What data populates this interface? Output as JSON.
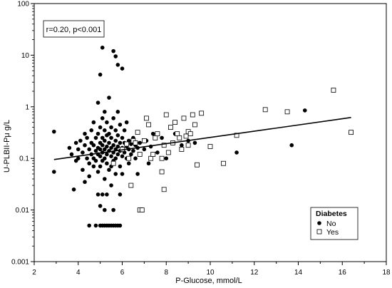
{
  "chart_data": {
    "type": "scatter",
    "title": "",
    "xlabel": "P-Glucose, mmol/L",
    "ylabel": "U-PLBII-Pμ g/L",
    "xlim": [
      2,
      18
    ],
    "ylim": [
      0.001,
      100
    ],
    "yscale": "log",
    "x_ticks": [
      2,
      4,
      6,
      8,
      10,
      12,
      14,
      16,
      18
    ],
    "y_ticks": [
      0.001,
      0.01,
      0.1,
      1,
      10,
      100
    ],
    "y_tick_labels": [
      "0.001",
      "0.01",
      "0.1",
      "1",
      "10",
      "100"
    ],
    "annotation": "r=0.20, p<0.001",
    "legend": {
      "title": "Diabetes",
      "position": "bottom-right",
      "entries": [
        {
          "label": "No",
          "marker": "filled-circle"
        },
        {
          "label": "Yes",
          "marker": "open-square"
        }
      ]
    },
    "regression_line": {
      "x": [
        2.9,
        16.4
      ],
      "y": [
        0.095,
        0.62
      ]
    },
    "series": [
      {
        "name": "No",
        "marker": "filled-circle",
        "points": [
          [
            2.9,
            0.33
          ],
          [
            2.9,
            0.055
          ],
          [
            3.6,
            0.16
          ],
          [
            3.7,
            0.12
          ],
          [
            3.8,
            0.025
          ],
          [
            3.9,
            0.2
          ],
          [
            3.9,
            0.09
          ],
          [
            4.0,
            0.1
          ],
          [
            4.0,
            0.15
          ],
          [
            4.1,
            0.22
          ],
          [
            4.2,
            0.13
          ],
          [
            4.2,
            0.06
          ],
          [
            4.3,
            0.3
          ],
          [
            4.3,
            0.18
          ],
          [
            4.3,
            0.035
          ],
          [
            4.4,
            0.1
          ],
          [
            4.4,
            0.25
          ],
          [
            4.5,
            0.08
          ],
          [
            4.5,
            0.15
          ],
          [
            4.5,
            0.045
          ],
          [
            4.5,
            0.005
          ],
          [
            4.6,
            0.2
          ],
          [
            4.6,
            0.12
          ],
          [
            4.6,
            0.35
          ],
          [
            4.7,
            0.1
          ],
          [
            4.7,
            0.07
          ],
          [
            4.7,
            0.18
          ],
          [
            4.7,
            0.5
          ],
          [
            4.8,
            0.14
          ],
          [
            4.8,
            0.25
          ],
          [
            4.8,
            0.09
          ],
          [
            4.8,
            0.005
          ],
          [
            4.9,
            0.16
          ],
          [
            4.9,
            0.3
          ],
          [
            4.9,
            0.12
          ],
          [
            4.9,
            1.2
          ],
          [
            4.9,
            0.02
          ],
          [
            4.9,
            0.055
          ],
          [
            5.0,
            0.2
          ],
          [
            5.0,
            0.11
          ],
          [
            5.0,
            0.4
          ],
          [
            5.0,
            0.15
          ],
          [
            5.0,
            0.07
          ],
          [
            5.0,
            4.2
          ],
          [
            5.0,
            0.005
          ],
          [
            5.0,
            0.012
          ],
          [
            5.1,
            14.0
          ],
          [
            5.1,
            0.25
          ],
          [
            5.1,
            0.13
          ],
          [
            5.1,
            0.18
          ],
          [
            5.1,
            0.6
          ],
          [
            5.1,
            0.09
          ],
          [
            5.1,
            0.02
          ],
          [
            5.1,
            0.005
          ],
          [
            5.2,
            0.22
          ],
          [
            5.2,
            0.15
          ],
          [
            5.2,
            0.35
          ],
          [
            5.2,
            0.1
          ],
          [
            5.2,
            0.8
          ],
          [
            5.2,
            0.04
          ],
          [
            5.2,
            0.005
          ],
          [
            5.2,
            0.01
          ],
          [
            5.3,
            0.17
          ],
          [
            5.3,
            0.12
          ],
          [
            5.3,
            0.28
          ],
          [
            5.3,
            0.5
          ],
          [
            5.3,
            0.08
          ],
          [
            5.3,
            0.02
          ],
          [
            5.3,
            0.005
          ],
          [
            5.4,
            0.2
          ],
          [
            5.4,
            0.14
          ],
          [
            5.4,
            0.3
          ],
          [
            5.4,
            0.06
          ],
          [
            5.4,
            1.5
          ],
          [
            5.4,
            0.005
          ],
          [
            5.5,
            0.16
          ],
          [
            5.5,
            0.25
          ],
          [
            5.5,
            0.11
          ],
          [
            5.5,
            0.4
          ],
          [
            5.5,
            0.07
          ],
          [
            5.5,
            0.03
          ],
          [
            5.5,
            0.005
          ],
          [
            5.6,
            12.0
          ],
          [
            5.6,
            0.18
          ],
          [
            5.6,
            0.13
          ],
          [
            5.6,
            0.6
          ],
          [
            5.6,
            0.09
          ],
          [
            5.6,
            0.01
          ],
          [
            5.6,
            0.005
          ],
          [
            5.7,
            9.5
          ],
          [
            5.7,
            0.22
          ],
          [
            5.7,
            0.15
          ],
          [
            5.7,
            0.35
          ],
          [
            5.7,
            0.1
          ],
          [
            5.7,
            0.05
          ],
          [
            5.7,
            0.005
          ],
          [
            5.8,
            6.5
          ],
          [
            5.8,
            0.17
          ],
          [
            5.8,
            0.12
          ],
          [
            5.8,
            0.28
          ],
          [
            5.8,
            0.8
          ],
          [
            5.8,
            0.005
          ],
          [
            5.9,
            0.2
          ],
          [
            5.9,
            0.14
          ],
          [
            5.9,
            0.45
          ],
          [
            5.9,
            0.07
          ],
          [
            5.9,
            0.02
          ],
          [
            5.9,
            0.005
          ],
          [
            6.0,
            5.5
          ],
          [
            6.0,
            0.16
          ],
          [
            6.0,
            0.25
          ],
          [
            6.0,
            0.11
          ],
          [
            6.0,
            0.05
          ],
          [
            6.1,
            0.2
          ],
          [
            6.1,
            0.13
          ],
          [
            6.1,
            0.35
          ],
          [
            6.2,
            0.17
          ],
          [
            6.2,
            0.1
          ],
          [
            6.2,
            0.5
          ],
          [
            6.3,
            0.15
          ],
          [
            6.3,
            0.22
          ],
          [
            6.3,
            0.08
          ],
          [
            6.4,
            0.19
          ],
          [
            6.4,
            0.12
          ],
          [
            6.4,
            0.03
          ],
          [
            6.5,
            0.14
          ],
          [
            6.5,
            0.25
          ],
          [
            6.6,
            0.18
          ],
          [
            6.6,
            0.1
          ],
          [
            6.7,
            0.16
          ],
          [
            6.7,
            0.05
          ],
          [
            6.8,
            0.2
          ],
          [
            6.8,
            0.12
          ],
          [
            6.9,
            0.01
          ],
          [
            7.0,
            0.15
          ],
          [
            7.1,
            0.22
          ],
          [
            7.2,
            0.08
          ],
          [
            7.3,
            0.17
          ],
          [
            7.4,
            0.3
          ],
          [
            7.6,
            0.13
          ],
          [
            7.8,
            0.25
          ],
          [
            8.0,
            0.1
          ],
          [
            8.4,
            0.3
          ],
          [
            8.7,
            0.18
          ],
          [
            9.0,
            0.22
          ],
          [
            9.3,
            0.2
          ],
          [
            11.2,
            0.13
          ],
          [
            13.7,
            0.18
          ],
          [
            14.3,
            0.85
          ]
        ]
      },
      {
        "name": "Yes",
        "marker": "open-square",
        "points": [
          [
            5.6,
            0.08
          ],
          [
            6.0,
            0.15
          ],
          [
            6.2,
            0.19
          ],
          [
            6.3,
            0.1
          ],
          [
            6.4,
            0.03
          ],
          [
            6.5,
            0.22
          ],
          [
            6.6,
            0.2
          ],
          [
            6.7,
            0.32
          ],
          [
            6.8,
            0.12
          ],
          [
            6.8,
            0.01
          ],
          [
            6.9,
            0.01
          ],
          [
            7.0,
            0.22
          ],
          [
            7.1,
            0.6
          ],
          [
            7.2,
            0.45
          ],
          [
            7.3,
            0.1
          ],
          [
            7.4,
            0.12
          ],
          [
            7.5,
            0.25
          ],
          [
            7.6,
            0.3
          ],
          [
            7.8,
            0.1
          ],
          [
            7.8,
            0.055
          ],
          [
            7.9,
            0.18
          ],
          [
            7.9,
            0.025
          ],
          [
            8.0,
            0.7
          ],
          [
            8.1,
            0.13
          ],
          [
            8.2,
            0.4
          ],
          [
            8.3,
            0.2
          ],
          [
            8.4,
            0.5
          ],
          [
            8.5,
            0.3
          ],
          [
            8.6,
            0.25
          ],
          [
            8.7,
            0.15
          ],
          [
            8.8,
            0.6
          ],
          [
            8.9,
            0.27
          ],
          [
            9.0,
            0.33
          ],
          [
            9.0,
            0.18
          ],
          [
            9.1,
            0.3
          ],
          [
            9.2,
            0.7
          ],
          [
            9.3,
            0.45
          ],
          [
            9.4,
            0.075
          ],
          [
            9.6,
            0.75
          ],
          [
            10.0,
            0.17
          ],
          [
            10.6,
            0.08
          ],
          [
            11.2,
            0.28
          ],
          [
            12.5,
            0.88
          ],
          [
            13.5,
            0.8
          ],
          [
            15.6,
            2.1
          ],
          [
            16.4,
            0.32
          ]
        ]
      }
    ]
  }
}
